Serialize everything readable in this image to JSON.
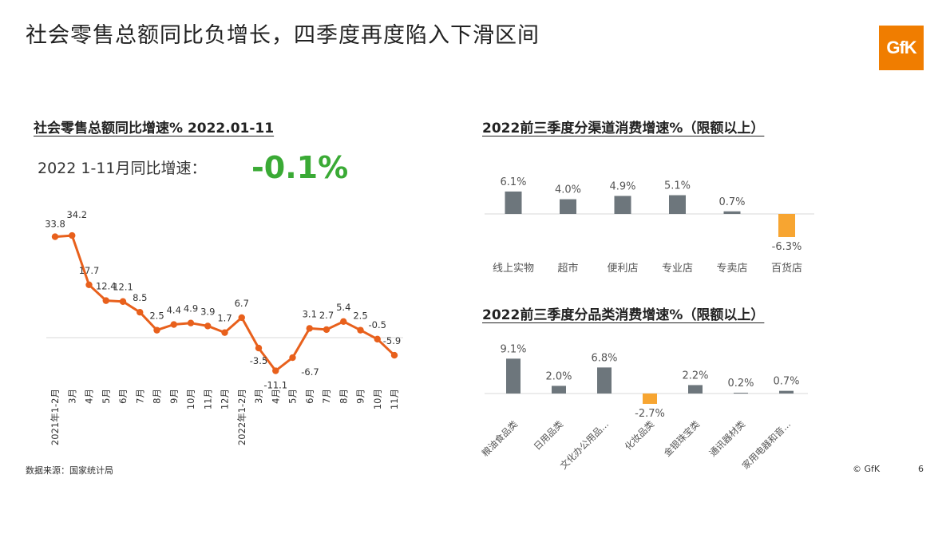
{
  "slide": {
    "title": "社会零售总额同比负增长，四季度再度陷入下滑区间",
    "logo": "GfK",
    "source": "数据来源：国家统计局",
    "copyright": "© GfK",
    "page_number": "6"
  },
  "left": {
    "title": "社会零售总额同比增速% 2022.01-11",
    "ytd_label": "2022 1-11月同比增速：",
    "ytd_value": "-0.1%"
  },
  "colors": {
    "line": "#E8601C",
    "bar_positive": "#6D767C",
    "bar_negative": "#F7A531",
    "highlight_green": "#3AAA35",
    "logo_orange": "#F07D00"
  },
  "chart_data": [
    {
      "type": "line",
      "title": "社会零售总额同比增速% 2022.01-11",
      "categories": [
        "2021年1-2月",
        "3月",
        "4月",
        "5月",
        "6月",
        "7月",
        "8月",
        "9月",
        "10月",
        "11月",
        "12月",
        "2022年1-2月",
        "3月",
        "4月",
        "5月",
        "6月",
        "7月",
        "8月",
        "9月",
        "10月",
        "11月"
      ],
      "series": [
        {
          "values": [
            33.8,
            34.2,
            17.7,
            12.4,
            12.1,
            8.5,
            2.5,
            4.4,
            4.9,
            3.9,
            1.7,
            6.7,
            -3.5,
            -11.1,
            -6.7,
            3.1,
            2.7,
            5.4,
            2.5,
            -0.5,
            -5.9
          ]
        }
      ],
      "data_labels": [
        "33.8",
        "34.2",
        "17.7",
        "12.4",
        "12.1",
        "8.5",
        "2.5",
        "4.4",
        "4.9",
        "3.9",
        "1.7",
        "6.7",
        "-3.5",
        "-11.1",
        "-6.7",
        "3.1",
        "2.7",
        "5.4",
        "2.5",
        "-0.5",
        "-5.9"
      ],
      "grid": false
    },
    {
      "type": "bar",
      "title": "2022前三季度分渠道消费增速%（限额以上）",
      "categories": [
        "线上实物",
        "超市",
        "便利店",
        "专业店",
        "专卖店",
        "百货店"
      ],
      "values": [
        6.1,
        4.0,
        4.9,
        5.1,
        0.7,
        -6.3
      ],
      "data_labels": [
        "6.1%",
        "4.0%",
        "4.9%",
        "5.1%",
        "0.7%",
        "-6.3%"
      ]
    },
    {
      "type": "bar",
      "title": "2022前三季度分品类消费增速%（限额以上）",
      "categories": [
        "粮油食品类",
        "日用品类",
        "文化办公用品...",
        "化妆品类",
        "金银珠宝类",
        "通讯器材类",
        "家用电器和音..."
      ],
      "values": [
        9.1,
        2.0,
        6.8,
        -2.7,
        2.2,
        0.2,
        0.7
      ],
      "data_labels": [
        "9.1%",
        "2.0%",
        "6.8%",
        "-2.7%",
        "2.2%",
        "0.2%",
        "0.7%"
      ]
    }
  ]
}
